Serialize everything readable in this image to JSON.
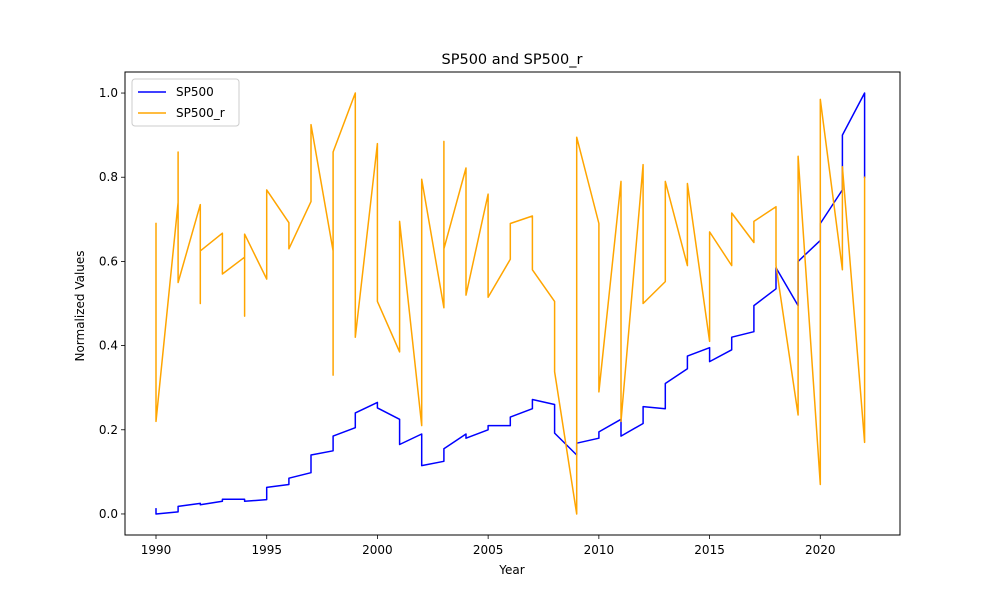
{
  "chart_data": {
    "type": "line",
    "title": "SP500 and SP500_r",
    "xlabel": "Year",
    "ylabel": "Normalized Values",
    "xlim": [
      1988.6,
      2023.6
    ],
    "ylim": [
      -0.05,
      1.05
    ],
    "xticks": [
      1990,
      1995,
      2000,
      2005,
      2010,
      2015,
      2020
    ],
    "yticks": [
      0.0,
      0.2,
      0.4,
      0.6,
      0.8,
      1.0
    ],
    "ytick_labels": [
      "0.0",
      "0.2",
      "0.4",
      "0.6",
      "0.8",
      "1.0"
    ],
    "grid": false,
    "legend": "upper left",
    "series": [
      {
        "name": "SP500",
        "color": "#0000ff",
        "x": [
          1990,
          1990,
          1990,
          1991,
          1991,
          1992,
          1992,
          1993,
          1993,
          1994,
          1994,
          1995,
          1995,
          1996,
          1996,
          1997,
          1997,
          1998,
          1998,
          1999,
          1999,
          2000,
          2000,
          2001,
          2001,
          2002,
          2002,
          2003,
          2003,
          2004,
          2004,
          2005,
          2005,
          2006,
          2006,
          2007,
          2007,
          2008,
          2008,
          2009,
          2009,
          2010,
          2010,
          2011,
          2011,
          2012,
          2012,
          2013,
          2013,
          2014,
          2014,
          2015,
          2015,
          2016,
          2016,
          2017,
          2017,
          2018,
          2018,
          2019,
          2019,
          2020,
          2020,
          2021,
          2021,
          2022,
          2022
        ],
        "y": [
          0.012,
          0.0,
          0.0,
          0.005,
          0.018,
          0.025,
          0.022,
          0.03,
          0.035,
          0.035,
          0.03,
          0.034,
          0.063,
          0.07,
          0.085,
          0.098,
          0.14,
          0.15,
          0.185,
          0.205,
          0.24,
          0.265,
          0.252,
          0.225,
          0.165,
          0.19,
          0.115,
          0.125,
          0.155,
          0.19,
          0.18,
          0.2,
          0.21,
          0.21,
          0.23,
          0.25,
          0.272,
          0.26,
          0.192,
          0.14,
          0.168,
          0.18,
          0.195,
          0.225,
          0.185,
          0.215,
          0.255,
          0.25,
          0.31,
          0.345,
          0.375,
          0.395,
          0.362,
          0.39,
          0.42,
          0.433,
          0.495,
          0.535,
          0.585,
          0.495,
          0.6,
          0.65,
          0.69,
          0.77,
          0.9,
          1.0,
          0.8
        ]
      },
      {
        "name": "SP500_r",
        "color": "#ffa500",
        "x": [
          1990,
          1990,
          1990,
          1991,
          1991,
          1991,
          1992,
          1992,
          1992,
          1993,
          1993,
          1994,
          1994,
          1994,
          1995,
          1995,
          1996,
          1996,
          1997,
          1997,
          1998,
          1998,
          1998,
          1999,
          1999,
          2000,
          2000,
          2001,
          2001,
          2002,
          2002,
          2003,
          2003,
          2003,
          2004,
          2004,
          2005,
          2005,
          2006,
          2006,
          2007,
          2007,
          2008,
          2008,
          2009,
          2009,
          2010,
          2010,
          2011,
          2011,
          2012,
          2012,
          2013,
          2013,
          2014,
          2014,
          2015,
          2015,
          2016,
          2016,
          2017,
          2017,
          2018,
          2018,
          2019,
          2019,
          2020,
          2020,
          2021,
          2021,
          2022,
          2022
        ],
        "y": [
          0.69,
          0.22,
          0.22,
          0.74,
          0.86,
          0.55,
          0.735,
          0.5,
          0.625,
          0.667,
          0.57,
          0.61,
          0.47,
          0.665,
          0.558,
          0.77,
          0.692,
          0.63,
          0.742,
          0.925,
          0.625,
          0.33,
          0.86,
          1.0,
          0.42,
          0.88,
          0.505,
          0.385,
          0.695,
          0.21,
          0.795,
          0.49,
          0.885,
          0.63,
          0.822,
          0.52,
          0.76,
          0.515,
          0.605,
          0.69,
          0.708,
          0.58,
          0.505,
          0.338,
          0.0,
          0.895,
          0.69,
          0.29,
          0.79,
          0.22,
          0.83,
          0.5,
          0.552,
          0.79,
          0.59,
          0.785,
          0.41,
          0.67,
          0.59,
          0.715,
          0.645,
          0.695,
          0.73,
          0.59,
          0.235,
          0.85,
          0.07,
          0.985,
          0.58,
          0.825,
          0.17,
          0.8
        ]
      }
    ]
  }
}
